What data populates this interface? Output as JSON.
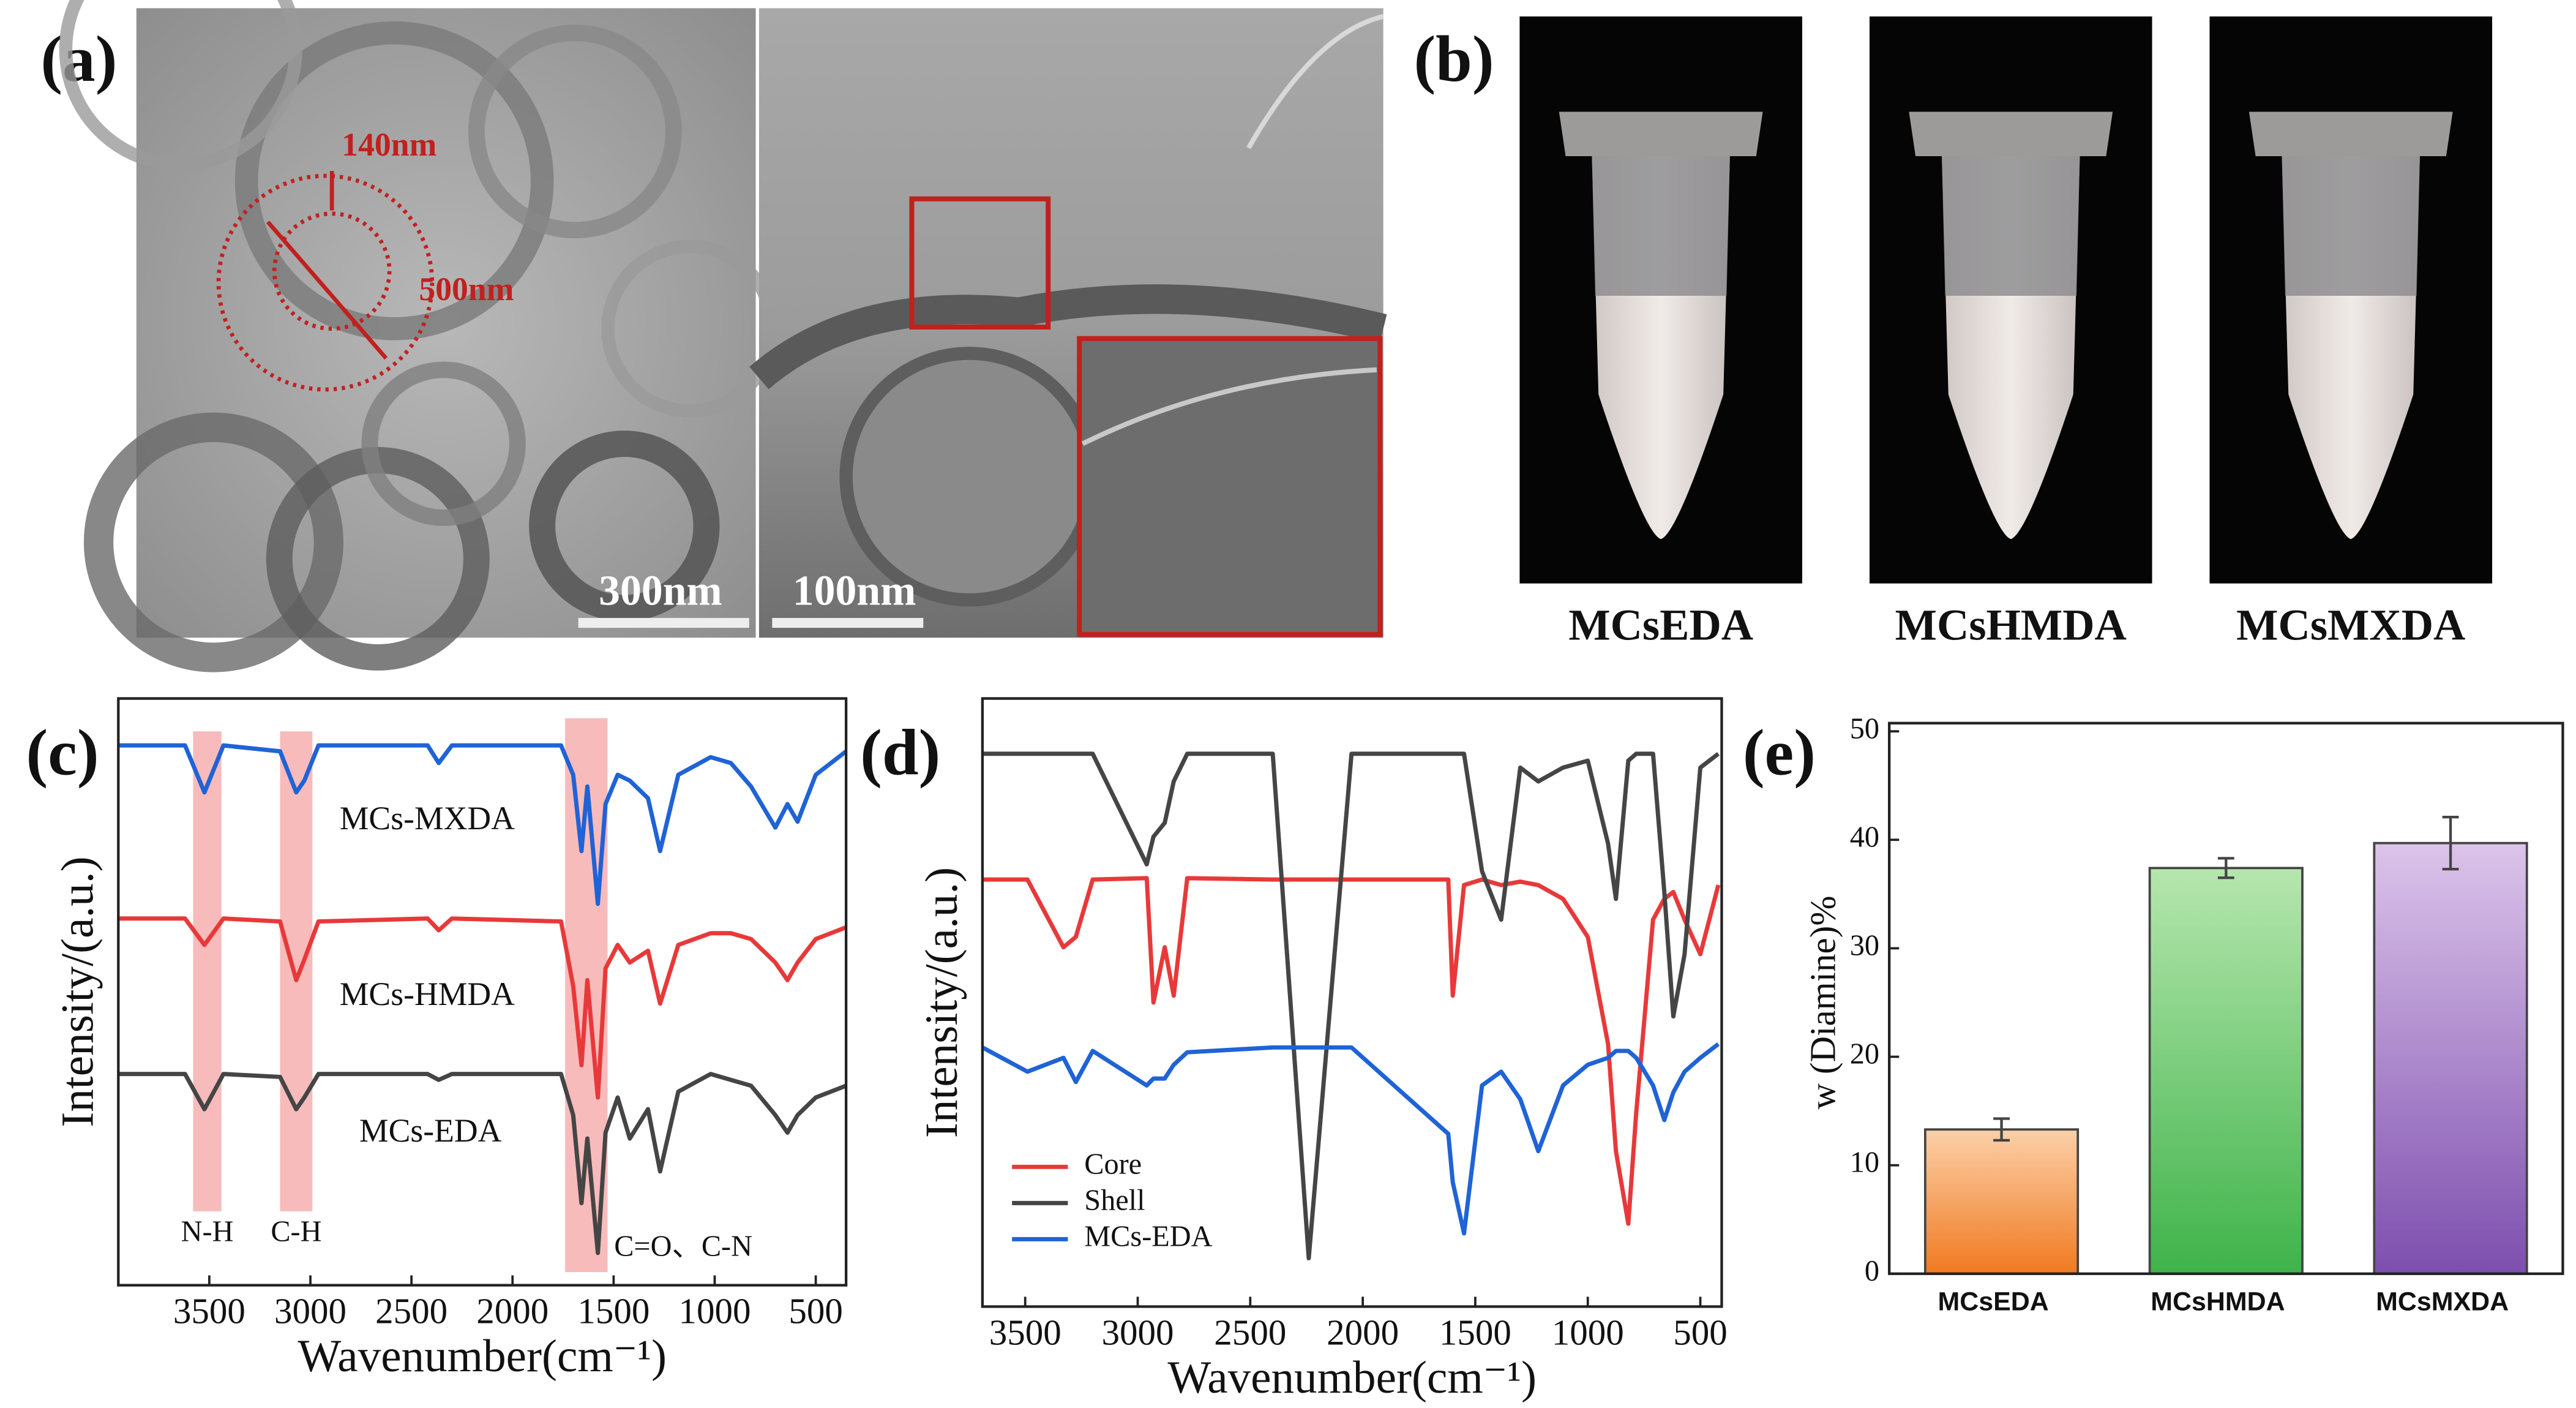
{
  "panel_labels": [
    "(a)",
    "(b)",
    "(c)",
    "(d)",
    "(e)"
  ],
  "panel_a": {
    "annotations": [
      "140nm",
      "500nm"
    ],
    "scale_labels": [
      "300nm",
      "100nm"
    ]
  },
  "panel_b": {
    "samples": [
      "MCsEDA",
      "MCsHMDA",
      "MCsMXDA"
    ]
  },
  "chart_data": [
    {
      "type": "line",
      "xlabel": "Wavenumber(cm⁻¹)",
      "ylabel": "Intensity/(a.u.)",
      "xlim": [
        3950,
        350
      ],
      "xticks": [
        3500,
        3000,
        2500,
        2000,
        1500,
        1000,
        500
      ],
      "ylim": [
        0,
        100
      ],
      "legend": "inline",
      "x": [
        3950,
        3620,
        3524,
        3430,
        3150,
        3070,
        3030,
        2960,
        2420,
        2365,
        2300,
        1760,
        1700,
        1659,
        1630,
        1578,
        1540,
        1480,
        1420,
        1330,
        1270,
        1180,
        1020,
        920,
        820,
        700,
        640,
        590,
        500,
        350
      ],
      "series": [
        {
          "name": "MCs-MXDA",
          "color": "#1f63d6",
          "values": [
            92,
            92,
            84,
            92,
            91,
            84,
            86,
            92,
            92,
            89,
            92,
            92,
            87,
            74,
            85,
            65,
            82,
            87,
            86,
            83,
            74,
            87,
            90,
            89,
            85,
            78,
            82,
            79,
            87,
            91
          ]
        },
        {
          "name": "MCs-HMDA",
          "color": "#e8393a",
          "values": [
            62.5,
            62.5,
            58,
            62.5,
            62,
            52,
            55.5,
            62,
            62.5,
            60.5,
            62.5,
            62,
            51,
            37.5,
            52,
            32,
            54,
            58,
            55,
            57,
            48,
            58,
            60,
            60,
            59,
            55,
            52,
            55,
            59,
            61
          ]
        },
        {
          "name": "MCs-EDA",
          "color": "#454545",
          "values": [
            36,
            36,
            30,
            36,
            35.5,
            30,
            32,
            36,
            36,
            35,
            36,
            36,
            29,
            14,
            25,
            5.5,
            26,
            32,
            25,
            30,
            19.4,
            33,
            36,
            35,
            34,
            29,
            26,
            29,
            32,
            34
          ]
        }
      ],
      "bands": [
        {
          "range": [
            3580,
            3440
          ],
          "label": "N-H"
        },
        {
          "range": [
            3150,
            2990
          ],
          "label": "C-H"
        },
        {
          "range": [
            1740,
            1530
          ],
          "label": "C=O、C-N"
        }
      ]
    },
    {
      "type": "line",
      "xlabel": "Wavenumber(cm⁻¹)",
      "ylabel": "Intensity/(a.u.)",
      "xlim": [
        3690,
        405
      ],
      "xticks": [
        3500,
        3000,
        2500,
        2000,
        1500,
        1000,
        500
      ],
      "ylim": [
        12,
        100
      ],
      "legend": "lower left",
      "x": [
        3690,
        3490,
        3330,
        3275,
        3200,
        2960,
        2930,
        2880,
        2840,
        2780,
        2400,
        2240,
        2050,
        1620,
        1600,
        1550,
        1470,
        1385,
        1300,
        1220,
        1110,
        1000,
        910,
        875,
        820,
        785,
        710,
        660,
        620,
        570,
        500,
        420
      ],
      "series": [
        {
          "name": "Core",
          "color": "#e8393a",
          "values": [
            73.8,
            73.8,
            64,
            65.5,
            73.8,
            74,
            56,
            64,
            57,
            74,
            73.8,
            73.8,
            73.8,
            73.8,
            57,
            73,
            73.8,
            73,
            73.5,
            73,
            71,
            65.5,
            50,
            34.5,
            24,
            40,
            68,
            71,
            72,
            68,
            63,
            73
          ]
        },
        {
          "name": "Shell",
          "color": "#454545",
          "values": [
            92,
            92,
            92,
            92,
            92,
            76,
            80,
            82,
            88,
            92,
            92,
            19,
            92,
            92,
            92,
            92,
            75,
            68,
            90,
            88,
            90,
            91,
            79,
            71,
            91,
            92,
            92,
            72,
            54,
            63,
            90,
            92
          ]
        },
        {
          "name": "MCs-EDA",
          "color": "#1f63d6",
          "values": [
            49.5,
            46,
            48,
            44.5,
            49,
            44,
            45,
            45,
            47,
            48.8,
            49.5,
            49.5,
            49.5,
            37,
            30,
            22.6,
            44,
            46,
            42,
            34.5,
            44,
            47,
            48,
            49,
            49,
            48,
            44,
            39,
            43,
            46,
            48,
            50
          ]
        }
      ]
    },
    {
      "type": "bar",
      "ylabel": "w (Diamine)%",
      "categories": [
        "MCsEDA",
        "MCsHMDA",
        "MCsMXDA"
      ],
      "values": [
        13.3,
        37.4,
        39.7
      ],
      "errors": [
        1.0,
        0.9,
        2.4
      ],
      "colors": [
        [
          "#fcd0a8",
          "#f07a20"
        ],
        [
          "#b6e6ae",
          "#3fb34a"
        ],
        [
          "#dcc4ea",
          "#7d4fae"
        ]
      ],
      "ylim": [
        0,
        50
      ],
      "yticks": [
        0,
        10,
        20,
        30,
        40,
        50
      ]
    }
  ]
}
